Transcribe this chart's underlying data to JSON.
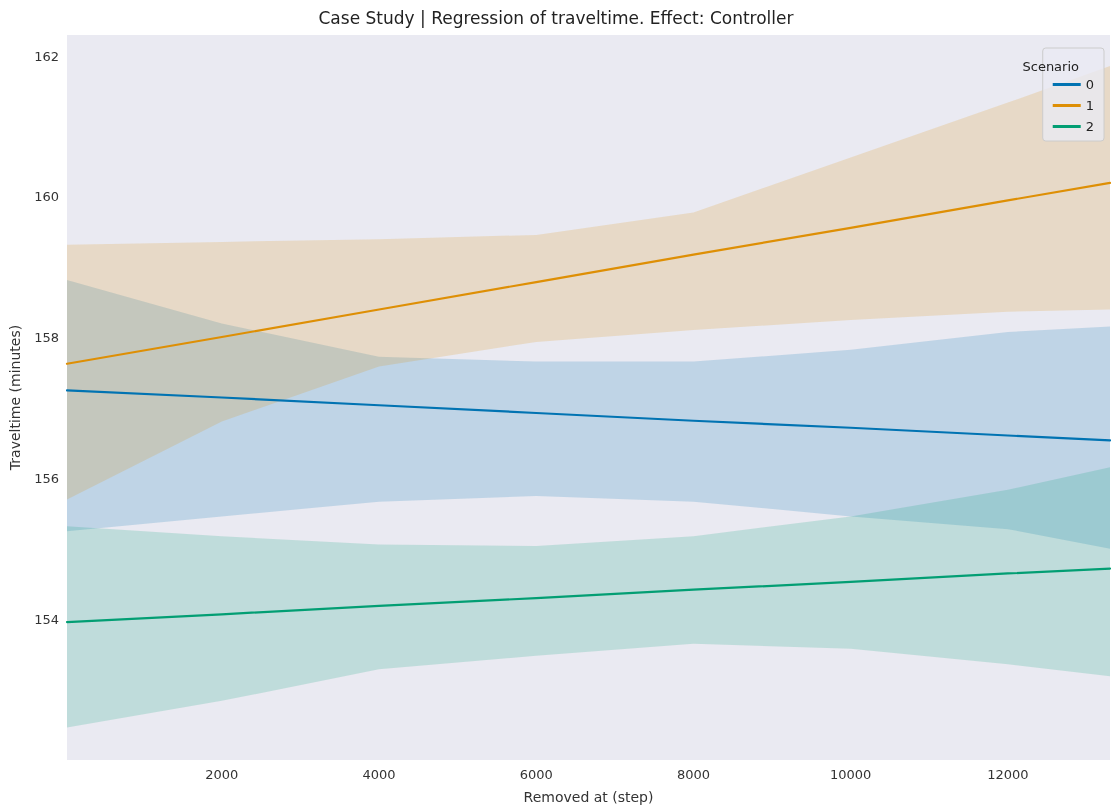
{
  "chart_data": {
    "type": "line",
    "title": "Case Study | Regression of traveltime. Effect: Controller",
    "xlabel": "Removed at (step)",
    "ylabel": "Traveltime (minutes)",
    "legend_title": "Scenario",
    "legend": "top right",
    "grid": false,
    "marker": "none",
    "line_style": "solid",
    "xlim": [
      30,
      13300
    ],
    "xticks": [
      2000,
      4000,
      6000,
      8000,
      10000,
      12000
    ],
    "ylim": [
      152,
      162.3
    ],
    "yticks": [
      154,
      156,
      158,
      160,
      162
    ],
    "series": [
      {
        "name": "0",
        "color": "#0173b2",
        "x": [
          30,
          2000,
          4000,
          6000,
          8000,
          10000,
          12000,
          13300
        ],
        "values": [
          157.25,
          157.15,
          157.04,
          156.93,
          156.82,
          156.72,
          156.61,
          156.54
        ],
        "lower": [
          155.25,
          155.46,
          155.67,
          155.75,
          155.67,
          155.46,
          155.28,
          155.0
        ],
        "upper": [
          158.82,
          158.2,
          157.73,
          157.66,
          157.66,
          157.83,
          158.08,
          158.16
        ]
      },
      {
        "name": "1",
        "color": "#de8f05",
        "x": [
          30,
          2000,
          4000,
          6000,
          8000,
          10000,
          12000,
          13300
        ],
        "values": [
          157.63,
          158.01,
          158.4,
          158.79,
          159.18,
          159.56,
          159.95,
          160.2
        ],
        "lower": [
          155.7,
          156.81,
          157.59,
          157.94,
          158.11,
          158.25,
          158.37,
          158.4
        ],
        "upper": [
          159.32,
          159.36,
          159.4,
          159.46,
          159.78,
          160.56,
          161.34,
          161.86
        ]
      },
      {
        "name": "2",
        "color": "#029e73",
        "x": [
          30,
          2000,
          4000,
          6000,
          8000,
          10000,
          12000,
          13300
        ],
        "values": [
          153.96,
          154.07,
          154.19,
          154.3,
          154.42,
          154.53,
          154.65,
          154.72
        ],
        "lower": [
          152.46,
          152.84,
          153.29,
          153.48,
          153.65,
          153.58,
          153.36,
          153.19
        ],
        "upper": [
          155.32,
          155.18,
          155.06,
          155.04,
          155.18,
          155.46,
          155.84,
          156.16
        ]
      }
    ]
  }
}
